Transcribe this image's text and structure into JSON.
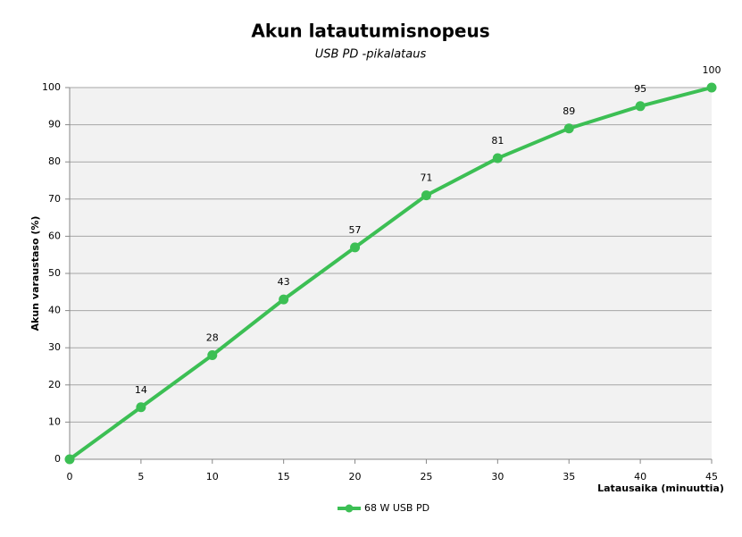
{
  "chart_data": {
    "type": "line",
    "title": "Akun latautumisnopeus",
    "subtitle": "USB PD -pikalataus",
    "x_label": "Latausaika  (minuuttia)",
    "y_label": "Akun varaustaso (%)",
    "x": [
      0,
      5,
      10,
      15,
      20,
      25,
      30,
      35,
      40,
      45
    ],
    "series": [
      {
        "name": "68 W USB PD",
        "color": "#3cbf54",
        "values": [
          0,
          14,
          28,
          43,
          57,
          71,
          81,
          89,
          95,
          100
        ],
        "value_labels": [
          null,
          "14",
          "28",
          "43",
          "57",
          "71",
          "81",
          "89",
          "95",
          "100"
        ]
      }
    ],
    "xlim": [
      0,
      45
    ],
    "xticks": [
      0,
      5,
      10,
      15,
      20,
      25,
      30,
      35,
      40,
      45
    ],
    "ylim": [
      0,
      100
    ],
    "yticks": [
      0,
      10,
      20,
      30,
      40,
      50,
      60,
      70,
      80,
      90,
      100
    ],
    "grid": true,
    "legend": "bottom"
  }
}
